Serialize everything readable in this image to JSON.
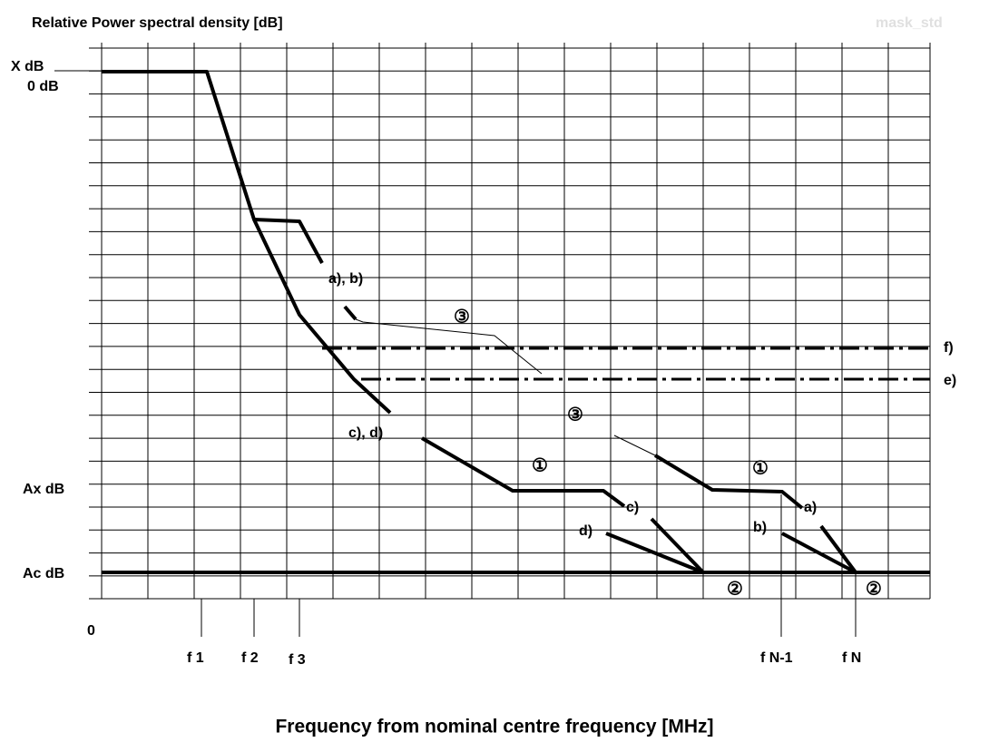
{
  "title": "Relative Power spectral density [dB]",
  "watermark": "mask_std",
  "y_labels": [
    "X dB",
    "0 dB",
    "Ax dB",
    "Ac dB",
    "0"
  ],
  "x_labels": [
    "f 1",
    "f 2",
    "f 3",
    "f N-1",
    "f N"
  ],
  "curve_labels": [
    "a), b)",
    "c), d)",
    "c)",
    "d)",
    "a)",
    "b)",
    "f)",
    "e)"
  ],
  "markers": [
    "③",
    "③",
    "①",
    "①",
    "②",
    "②"
  ],
  "x_axis_title": "Frequency from nominal centre frequency [MHz]"
}
